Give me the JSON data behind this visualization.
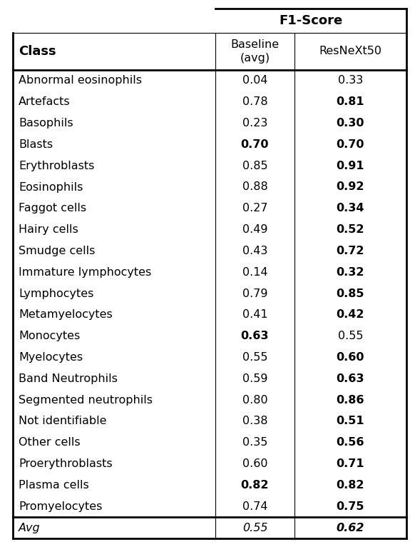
{
  "title": "F1-Score",
  "col_header_1": "Class",
  "col_header_2": "Baseline\n(avg)",
  "col_header_3": "ResNeXt50",
  "rows": [
    {
      "class": "Abnormal eosinophils",
      "baseline": "0.04",
      "resnext": "0.33",
      "bold_baseline": false,
      "bold_resnext": false
    },
    {
      "class": "Artefacts",
      "baseline": "0.78",
      "resnext": "0.81",
      "bold_baseline": false,
      "bold_resnext": true
    },
    {
      "class": "Basophils",
      "baseline": "0.23",
      "resnext": "0.30",
      "bold_baseline": false,
      "bold_resnext": true
    },
    {
      "class": "Blasts",
      "baseline": "0.70",
      "resnext": "0.70",
      "bold_baseline": true,
      "bold_resnext": true
    },
    {
      "class": "Erythroblasts",
      "baseline": "0.85",
      "resnext": "0.91",
      "bold_baseline": false,
      "bold_resnext": true
    },
    {
      "class": "Eosinophils",
      "baseline": "0.88",
      "resnext": "0.92",
      "bold_baseline": false,
      "bold_resnext": true
    },
    {
      "class": "Faggot cells",
      "baseline": "0.27",
      "resnext": "0.34",
      "bold_baseline": false,
      "bold_resnext": true
    },
    {
      "class": "Hairy cells",
      "baseline": "0.49",
      "resnext": "0.52",
      "bold_baseline": false,
      "bold_resnext": true
    },
    {
      "class": "Smudge cells",
      "baseline": "0.43",
      "resnext": "0.72",
      "bold_baseline": false,
      "bold_resnext": true
    },
    {
      "class": "Immature lymphocytes",
      "baseline": "0.14",
      "resnext": "0.32",
      "bold_baseline": false,
      "bold_resnext": true
    },
    {
      "class": "Lymphocytes",
      "baseline": "0.79",
      "resnext": "0.85",
      "bold_baseline": false,
      "bold_resnext": true
    },
    {
      "class": "Metamyelocytes",
      "baseline": "0.41",
      "resnext": "0.42",
      "bold_baseline": false,
      "bold_resnext": true
    },
    {
      "class": "Monocytes",
      "baseline": "0.63",
      "resnext": "0.55",
      "bold_baseline": true,
      "bold_resnext": false
    },
    {
      "class": "Myelocytes",
      "baseline": "0.55",
      "resnext": "0.60",
      "bold_baseline": false,
      "bold_resnext": true
    },
    {
      "class": "Band Neutrophils",
      "baseline": "0.59",
      "resnext": "0.63",
      "bold_baseline": false,
      "bold_resnext": true
    },
    {
      "class": "Segmented neutrophils",
      "baseline": "0.80",
      "resnext": "0.86",
      "bold_baseline": false,
      "bold_resnext": true
    },
    {
      "class": "Not identifiable",
      "baseline": "0.38",
      "resnext": "0.51",
      "bold_baseline": false,
      "bold_resnext": true
    },
    {
      "class": "Other cells",
      "baseline": "0.35",
      "resnext": "0.56",
      "bold_baseline": false,
      "bold_resnext": true
    },
    {
      "class": "Proerythroblasts",
      "baseline": "0.60",
      "resnext": "0.71",
      "bold_baseline": false,
      "bold_resnext": true
    },
    {
      "class": "Plasma cells",
      "baseline": "0.82",
      "resnext": "0.82",
      "bold_baseline": true,
      "bold_resnext": true
    },
    {
      "class": "Promyelocytes",
      "baseline": "0.74",
      "resnext": "0.75",
      "bold_baseline": false,
      "bold_resnext": true
    }
  ],
  "avg_row": {
    "class": "Avg",
    "baseline": "0.55",
    "resnext": "0.62",
    "bold_baseline": false,
    "bold_resnext": true
  },
  "bg_color": "#ffffff",
  "text_color": "#000000",
  "fontsize": 11.5,
  "header_fontsize": 13
}
